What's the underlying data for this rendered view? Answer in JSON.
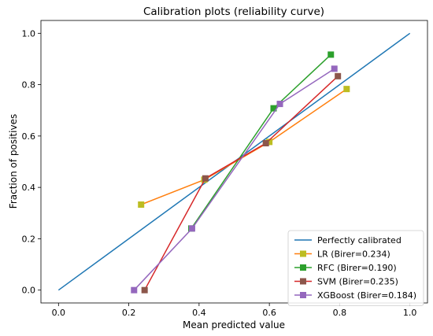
{
  "chart_data": {
    "type": "line",
    "title": "Calibration plots (reliability curve)",
    "xlabel": "Mean predicted value",
    "ylabel": "Fraction of positives",
    "xlim": [
      -0.05,
      1.05
    ],
    "ylim": [
      -0.05,
      1.05
    ],
    "x_ticks": [
      0.0,
      0.2,
      0.4,
      0.6,
      0.8,
      1.0
    ],
    "y_ticks": [
      0.0,
      0.2,
      0.4,
      0.6,
      0.8,
      1.0
    ],
    "x_tick_labels": [
      "0.0",
      "0.2",
      "0.4",
      "0.6",
      "0.8",
      "1.0"
    ],
    "y_tick_labels": [
      "0.0",
      "0.2",
      "0.4",
      "0.6",
      "0.8",
      "1.0"
    ],
    "grid": false,
    "legend_position": "bottom-right",
    "reference_line": {
      "name": "Perfectly calibrated",
      "color": "#1f77b4",
      "x": [
        0.0,
        1.0
      ],
      "y": [
        0.0,
        1.0
      ]
    },
    "series": [
      {
        "name": "LR (Birer=0.234)",
        "color": "#ff7f0e",
        "marker_color": "#bcbd22",
        "x": [
          0.235,
          0.415,
          0.6,
          0.82
        ],
        "y": [
          0.333,
          0.43,
          0.577,
          0.783
        ]
      },
      {
        "name": "RFC (Birer=0.190)",
        "color": "#2ca02c",
        "marker_color": "#2ca02c",
        "x": [
          0.378,
          0.612,
          0.775
        ],
        "y": [
          0.24,
          0.708,
          0.917
        ]
      },
      {
        "name": "SVM (Birer=0.235)",
        "color": "#d62728",
        "marker_color": "#8c564b",
        "x": [
          0.245,
          0.418,
          0.59,
          0.795
        ],
        "y": [
          0.0,
          0.435,
          0.572,
          0.833
        ]
      },
      {
        "name": "XGBoost (Birer=0.184)",
        "color": "#9467bd",
        "marker_color": "#9467bd",
        "x": [
          0.215,
          0.38,
          0.63,
          0.785
        ],
        "y": [
          0.0,
          0.24,
          0.725,
          0.862
        ]
      }
    ]
  }
}
